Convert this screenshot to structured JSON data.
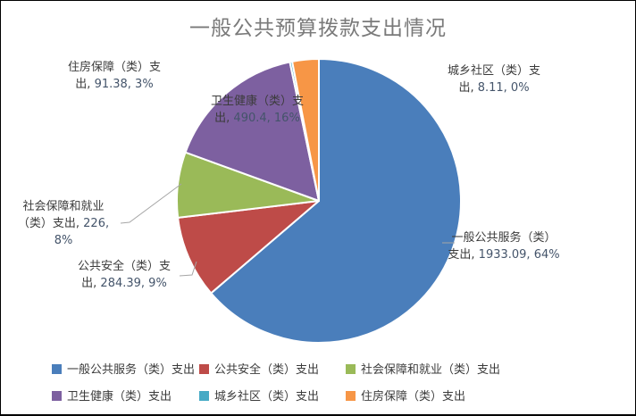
{
  "chart_data": {
    "type": "pie",
    "title": "一般公共预算拨款支出情况",
    "legend_position": "bottom",
    "data_label_format": "name, value, percent",
    "series": [
      {
        "name": "一般公共服务（类）支出",
        "value": 1933.09,
        "pct": "64%",
        "color": "#4a7ebb",
        "label_lines": [
          "一般公共服务（类）",
          "支出, 1933.09, 64%"
        ]
      },
      {
        "name": "公共安全（类）支出",
        "value": 284.39,
        "pct": "9%",
        "color": "#be4b48",
        "label_lines": [
          "公共安全（类）支",
          "出, 284.39, 9%"
        ]
      },
      {
        "name": "社会保障和就业（类）支出",
        "value": 226,
        "pct": "8%",
        "color": "#9aba58",
        "label_lines": [
          "社会保障和就业",
          "（类）支出, 226,",
          "8%"
        ]
      },
      {
        "name": "卫生健康（类）支出",
        "value": 490.4,
        "pct": "16%",
        "color": "#7d60a0",
        "label_lines": [
          "卫生健康（类）支",
          "出, 490.4, 16%"
        ]
      },
      {
        "name": "城乡社区（类）支出",
        "value": 8.11,
        "pct": "0%",
        "color": "#46aac5",
        "label_lines": [
          "城乡社区（类）支",
          "出, 8.11, 0%"
        ]
      },
      {
        "name": "住房保障（类）支出",
        "value": 91.38,
        "pct": "3%",
        "color": "#f79646",
        "label_lines": [
          "住房保障（类）支",
          "出, 91.38, 3%"
        ]
      }
    ],
    "colors": {
      "title_text": "#7a7a7a",
      "label_text": "#3b3b3b",
      "label_number_text": "#44546a",
      "leader_line": "#a6a6a6",
      "slice_border": "#ffffff",
      "background": "#ffffff"
    }
  }
}
